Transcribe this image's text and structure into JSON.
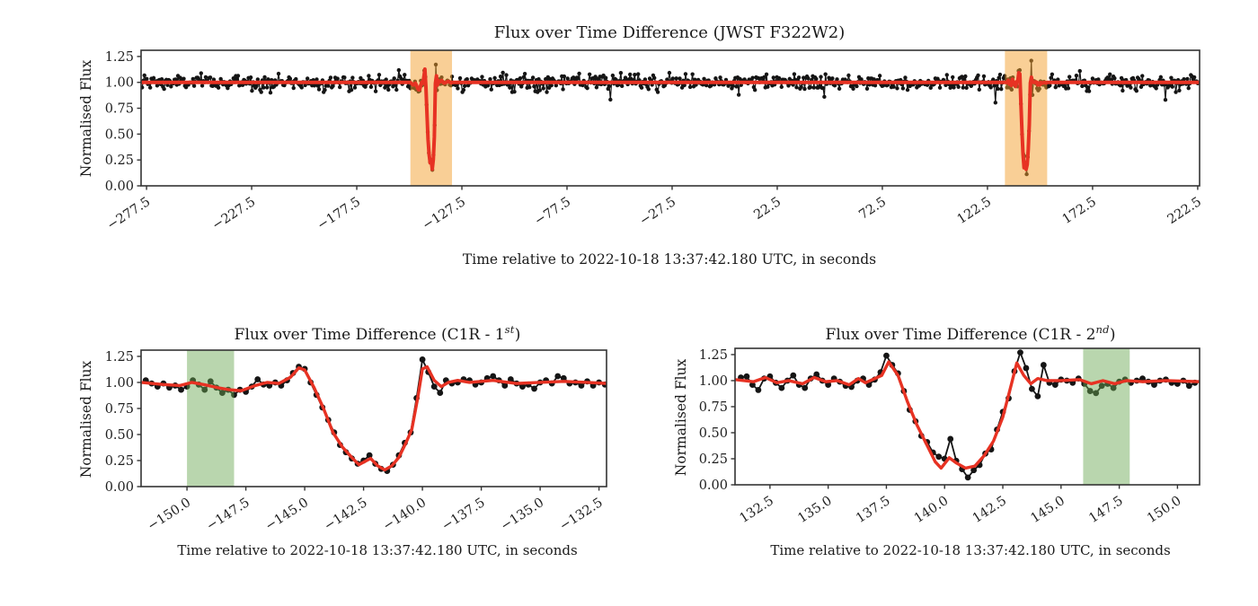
{
  "figure": {
    "background": "#ffffff"
  },
  "colors": {
    "red_line": "#e73223",
    "black_points": "#151515",
    "orange_band": "rgba(243,159,45,0.50)",
    "green_band": "rgba(106,168,82,0.47)",
    "axis": "#333333"
  },
  "chart_data": [
    {
      "type": "scatter-line",
      "title": {
        "prefix": "Flux over Time Difference (JWST F322W2)",
        "sup": "",
        "suffix": ""
      },
      "xlabel": "Time relative to 2022-10-18 13:37:42.180 UTC, in seconds",
      "ylabel": "Normalised Flux",
      "xlim": [
        -280.1,
        223.4
      ],
      "ylim": [
        0,
        1.31
      ],
      "grid": false,
      "xticks": [
        {
          "v": -277.5,
          "label": "−277.5"
        },
        {
          "v": -227.5,
          "label": "−227.5"
        },
        {
          "v": -177.5,
          "label": "−177.5"
        },
        {
          "v": -127.5,
          "label": "−127.5"
        },
        {
          "v": -77.5,
          "label": "−77.5"
        },
        {
          "v": -27.5,
          "label": "−27.5"
        },
        {
          "v": 22.5,
          "label": "22.5"
        },
        {
          "v": 72.5,
          "label": "72.5"
        },
        {
          "v": 122.5,
          "label": "122.5"
        },
        {
          "v": 172.5,
          "label": "172.5"
        },
        {
          "v": 222.5,
          "label": "222.5"
        }
      ],
      "yticks": [
        {
          "v": 0,
          "label": "0.00"
        },
        {
          "v": 0.25,
          "label": "0.25"
        },
        {
          "v": 0.5,
          "label": "0.50"
        },
        {
          "v": 0.75,
          "label": "0.75"
        },
        {
          "v": 1.0,
          "label": "1.00"
        },
        {
          "v": 1.25,
          "label": "1.25"
        }
      ],
      "highlight_regions": [
        {
          "x0": -152.0,
          "x1": -132.2,
          "color_key": "orange_band"
        },
        {
          "x0": 130.8,
          "x1": 150.9,
          "color_key": "orange_band"
        }
      ],
      "baseline": {
        "level": 1.0,
        "noise_sigma": 0.036,
        "cadence_s": 0.55
      },
      "red_model_baseline": 1.0,
      "transit_windows": [
        {
          "source_chart": 1,
          "t_min": -151.75,
          "t_max": -132.25
        },
        {
          "source_chart": 2,
          "t_min": 131.25,
          "t_max": 150.75
        }
      ]
    },
    {
      "type": "scatter-line",
      "title": {
        "prefix": "Flux over Time Difference (C1R - 1",
        "sup": "st",
        "suffix": ")"
      },
      "xlabel": "Time relative to 2022-10-18 13:37:42.180 UTC, in seconds",
      "ylabel": "Normalised Flux",
      "xlim": [
        -151.95,
        -132.18
      ],
      "ylim": [
        0,
        1.31
      ],
      "grid": false,
      "xticks": [
        {
          "v": -150.0,
          "label": "−150.0"
        },
        {
          "v": -147.5,
          "label": "−147.5"
        },
        {
          "v": -145.0,
          "label": "−145.0"
        },
        {
          "v": -142.5,
          "label": "−142.5"
        },
        {
          "v": -140.0,
          "label": "−140.0"
        },
        {
          "v": -137.5,
          "label": "−137.5"
        },
        {
          "v": -135.0,
          "label": "−135.0"
        },
        {
          "v": -132.5,
          "label": "−132.5"
        }
      ],
      "yticks": [
        {
          "v": 0,
          "label": "0.00"
        },
        {
          "v": 0.25,
          "label": "0.25"
        },
        {
          "v": 0.5,
          "label": "0.50"
        },
        {
          "v": 0.75,
          "label": "0.75"
        },
        {
          "v": 1.0,
          "label": "1.00"
        },
        {
          "v": 1.25,
          "label": "1.25"
        }
      ],
      "highlight_regions": [
        {
          "x0": -150.0,
          "x1": -148.0,
          "color_key": "green_band"
        }
      ],
      "series": {
        "black": {
          "t0": -151.75,
          "dt": 0.25,
          "flux": [
            1.02,
            0.99,
            0.96,
            0.99,
            0.95,
            0.97,
            0.93,
            0.96,
            1.02,
            0.98,
            0.93,
            1.01,
            0.95,
            0.9,
            0.93,
            0.88,
            0.93,
            0.91,
            0.96,
            1.03,
            0.98,
            0.97,
            1.0,
            0.97,
            1.02,
            1.09,
            1.15,
            1.13,
            1.0,
            0.88,
            0.76,
            0.64,
            0.52,
            0.4,
            0.33,
            0.27,
            0.22,
            0.25,
            0.3,
            0.22,
            0.17,
            0.15,
            0.21,
            0.3,
            0.42,
            0.52,
            0.85,
            1.22,
            1.1,
            0.96,
            0.9,
            1.02,
            0.99,
            1.0,
            1.03,
            1.02,
            0.98,
            1.0,
            1.04,
            1.06,
            1.02,
            0.97,
            1.03,
            0.99,
            0.96,
            0.98,
            0.94,
            1.0,
            1.02,
            0.99,
            1.06,
            1.04,
            0.99,
            1.0,
            0.97,
            1.01,
            0.97,
            1.0,
            0.98
          ]
        },
        "red": {
          "anchors": [
            [
              -151.95,
              1.0
            ],
            [
              -151.0,
              0.98
            ],
            [
              -150.3,
              0.97
            ],
            [
              -149.8,
              1.0
            ],
            [
              -149.3,
              0.98
            ],
            [
              -148.7,
              0.95
            ],
            [
              -148.2,
              0.93
            ],
            [
              -147.7,
              0.92
            ],
            [
              -147.1,
              0.97
            ],
            [
              -146.6,
              1.0
            ],
            [
              -146.1,
              0.99
            ],
            [
              -145.6,
              1.05
            ],
            [
              -145.25,
              1.14
            ],
            [
              -145.0,
              1.12
            ],
            [
              -144.6,
              0.95
            ],
            [
              -144.2,
              0.75
            ],
            [
              -143.8,
              0.52
            ],
            [
              -143.4,
              0.38
            ],
            [
              -143.0,
              0.28
            ],
            [
              -142.7,
              0.21
            ],
            [
              -142.45,
              0.24
            ],
            [
              -142.2,
              0.27
            ],
            [
              -141.9,
              0.2
            ],
            [
              -141.6,
              0.16
            ],
            [
              -141.3,
              0.2
            ],
            [
              -141.0,
              0.28
            ],
            [
              -140.7,
              0.42
            ],
            [
              -140.45,
              0.55
            ],
            [
              -140.2,
              0.85
            ],
            [
              -140.0,
              1.13
            ],
            [
              -139.8,
              1.15
            ],
            [
              -139.5,
              1.02
            ],
            [
              -139.2,
              0.96
            ],
            [
              -138.9,
              1.0
            ],
            [
              -138.5,
              1.02
            ],
            [
              -138.0,
              1.0
            ],
            [
              -137.0,
              1.02
            ],
            [
              -136.0,
              0.99
            ],
            [
              -135.0,
              1.0
            ],
            [
              -134.0,
              1.01
            ],
            [
              -133.0,
              1.0
            ],
            [
              -132.18,
              0.99
            ]
          ]
        }
      }
    },
    {
      "type": "scatter-line",
      "title": {
        "prefix": "Flux over Time Difference (C1R - 2",
        "sup": "nd",
        "suffix": ")"
      },
      "xlabel": "Time relative to 2022-10-18 13:37:42.180 UTC, in seconds",
      "ylabel": "Normalised Flux",
      "xlim": [
        131.0,
        150.95
      ],
      "ylim": [
        0,
        1.31
      ],
      "grid": false,
      "xticks": [
        {
          "v": 132.5,
          "label": "132.5"
        },
        {
          "v": 135.0,
          "label": "135.0"
        },
        {
          "v": 137.5,
          "label": "137.5"
        },
        {
          "v": 140.0,
          "label": "140.0"
        },
        {
          "v": 142.5,
          "label": "142.5"
        },
        {
          "v": 145.0,
          "label": "145.0"
        },
        {
          "v": 147.5,
          "label": "147.5"
        },
        {
          "v": 150.0,
          "label": "150.0"
        }
      ],
      "yticks": [
        {
          "v": 0,
          "label": "0.00"
        },
        {
          "v": 0.25,
          "label": "0.25"
        },
        {
          "v": 0.5,
          "label": "0.50"
        },
        {
          "v": 0.75,
          "label": "0.75"
        },
        {
          "v": 1.0,
          "label": "1.00"
        },
        {
          "v": 1.25,
          "label": "1.25"
        }
      ],
      "highlight_regions": [
        {
          "x0": 145.95,
          "x1": 147.95,
          "color_key": "green_band"
        }
      ],
      "series": {
        "black": {
          "t0": 131.25,
          "dt": 0.25,
          "flux": [
            1.03,
            1.04,
            0.96,
            0.91,
            1.02,
            1.04,
            0.98,
            0.93,
            1.0,
            1.05,
            0.96,
            0.93,
            1.02,
            1.06,
            1.0,
            0.96,
            1.02,
            0.99,
            0.95,
            0.94,
            1.0,
            1.02,
            0.96,
            1.01,
            1.08,
            1.24,
            1.15,
            1.07,
            0.9,
            0.72,
            0.61,
            0.47,
            0.41,
            0.31,
            0.27,
            0.25,
            0.44,
            0.23,
            0.15,
            0.07,
            0.14,
            0.19,
            0.3,
            0.34,
            0.53,
            0.7,
            0.83,
            1.09,
            1.27,
            1.12,
            0.92,
            0.85,
            1.15,
            0.98,
            0.96,
            1.01,
            1.0,
            0.98,
            1.02,
            0.97,
            0.9,
            0.88,
            0.95,
            0.97,
            0.93,
            0.99,
            1.01,
            0.98,
            1.0,
            1.02,
            0.99,
            0.96,
            1.0,
            1.01,
            0.98,
            0.97,
            1.0,
            0.95,
            0.98
          ]
        },
        "red": {
          "anchors": [
            [
              131.0,
              1.01
            ],
            [
              131.8,
              0.99
            ],
            [
              132.3,
              1.03
            ],
            [
              132.8,
              0.98
            ],
            [
              133.3,
              1.0
            ],
            [
              133.9,
              0.97
            ],
            [
              134.4,
              1.03
            ],
            [
              134.9,
              0.99
            ],
            [
              135.4,
              1.0
            ],
            [
              135.9,
              0.96
            ],
            [
              136.3,
              1.02
            ],
            [
              136.6,
              0.98
            ],
            [
              137.0,
              1.02
            ],
            [
              137.3,
              1.05
            ],
            [
              137.6,
              1.18
            ],
            [
              138.0,
              1.05
            ],
            [
              138.4,
              0.8
            ],
            [
              138.8,
              0.58
            ],
            [
              139.2,
              0.4
            ],
            [
              139.6,
              0.22
            ],
            [
              139.85,
              0.16
            ],
            [
              140.2,
              0.26
            ],
            [
              140.5,
              0.21
            ],
            [
              140.9,
              0.16
            ],
            [
              141.3,
              0.18
            ],
            [
              141.7,
              0.28
            ],
            [
              142.1,
              0.42
            ],
            [
              142.5,
              0.65
            ],
            [
              142.85,
              0.95
            ],
            [
              143.1,
              1.17
            ],
            [
              143.4,
              1.05
            ],
            [
              143.7,
              0.97
            ],
            [
              144.0,
              1.02
            ],
            [
              144.4,
              1.0
            ],
            [
              145.0,
              1.0
            ],
            [
              145.8,
              1.01
            ],
            [
              146.3,
              0.97
            ],
            [
              146.8,
              1.0
            ],
            [
              147.3,
              0.97
            ],
            [
              147.8,
              1.0
            ],
            [
              148.5,
              0.99
            ],
            [
              149.5,
              1.0
            ],
            [
              150.95,
              0.99
            ]
          ]
        }
      }
    }
  ]
}
